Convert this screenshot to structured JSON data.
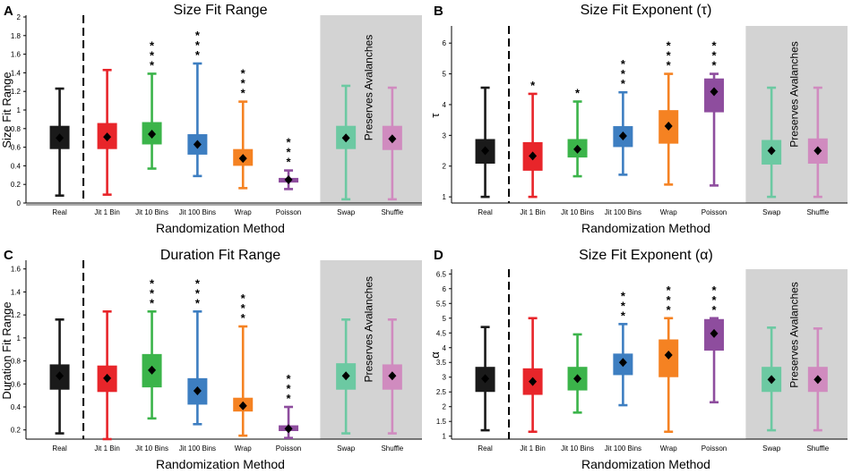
{
  "colors": {
    "axis": "#000000",
    "shade": "#d3d3d3",
    "methods": [
      "#1a1a1a",
      "#e8252a",
      "#3bb44a",
      "#3d7ec1",
      "#f58222",
      "#8e4d9e",
      "#6cc9a2",
      "#d08bbf"
    ]
  },
  "chart_data": [
    {
      "panel_letter": "A",
      "type": "box",
      "title": "Size Fit Range",
      "xlabel": "Randomization Method",
      "ylabel": "Size Fit Range",
      "ylim": [
        0,
        2
      ],
      "yticks": [
        "0",
        "0.2",
        "0.4",
        "0.6",
        "0.8",
        "1",
        "1.2",
        "1.4",
        "1.6",
        "1.8",
        "2"
      ],
      "categories": [
        "Real",
        "Jit 1 Bin",
        "Jit 10 Bins",
        "Jit 100 Bins",
        "Wrap",
        "Poisson",
        "Swap",
        "Shuffle"
      ],
      "shaded_label": "Preserves Avalanches",
      "reference_line": 0,
      "boxes": [
        {
          "min": 0.08,
          "q1": 0.58,
          "median": 0.7,
          "q3": 0.83,
          "max": 1.23,
          "stars": ""
        },
        {
          "min": 0.09,
          "q1": 0.58,
          "median": 0.71,
          "q3": 0.86,
          "max": 1.43,
          "stars": ""
        },
        {
          "min": 0.37,
          "q1": 0.63,
          "median": 0.74,
          "q3": 0.87,
          "max": 1.39,
          "stars": "***"
        },
        {
          "min": 0.29,
          "q1": 0.52,
          "median": 0.63,
          "q3": 0.74,
          "max": 1.5,
          "stars": "***"
        },
        {
          "min": 0.16,
          "q1": 0.4,
          "median": 0.48,
          "q3": 0.58,
          "max": 1.09,
          "stars": "***"
        },
        {
          "min": 0.15,
          "q1": 0.22,
          "median": 0.25,
          "q3": 0.27,
          "max": 0.35,
          "stars": "***"
        },
        {
          "min": 0.04,
          "q1": 0.58,
          "median": 0.7,
          "q3": 0.83,
          "max": 1.26,
          "stars": ""
        },
        {
          "min": 0.04,
          "q1": 0.57,
          "median": 0.69,
          "q3": 0.83,
          "max": 1.24,
          "stars": ""
        }
      ]
    },
    {
      "panel_letter": "B",
      "type": "box",
      "title": "Size Fit Exponent (τ)",
      "xlabel": "Randomization Method",
      "ylabel": "τ",
      "ylim": [
        0.8,
        6.5
      ],
      "yticks": [
        "1",
        "2",
        "3",
        "4",
        "5",
        "6"
      ],
      "categories": [
        "Real",
        "Jit 1 Bin",
        "Jit 10 Bins",
        "Jit 100 Bins",
        "Wrap",
        "Poisson",
        "Swap",
        "Shuffle"
      ],
      "shaded_label": "Preserves Avalanches",
      "reference_line": null,
      "boxes": [
        {
          "min": 1.0,
          "q1": 2.08,
          "median": 2.5,
          "q3": 2.88,
          "max": 4.55,
          "stars": ""
        },
        {
          "min": 1.0,
          "q1": 1.85,
          "median": 2.33,
          "q3": 2.78,
          "max": 4.35,
          "stars": "*"
        },
        {
          "min": 1.67,
          "q1": 2.28,
          "median": 2.55,
          "q3": 2.88,
          "max": 4.1,
          "stars": "*"
        },
        {
          "min": 1.72,
          "q1": 2.62,
          "median": 2.98,
          "q3": 3.3,
          "max": 4.4,
          "stars": "***"
        },
        {
          "min": 1.4,
          "q1": 2.73,
          "median": 3.3,
          "q3": 3.82,
          "max": 5.0,
          "stars": "***"
        },
        {
          "min": 1.37,
          "q1": 3.75,
          "median": 4.42,
          "q3": 4.85,
          "max": 5.0,
          "stars": "***"
        },
        {
          "min": 1.0,
          "q1": 2.05,
          "median": 2.5,
          "q3": 2.85,
          "max": 4.55,
          "stars": ""
        },
        {
          "min": 1.0,
          "q1": 2.08,
          "median": 2.5,
          "q3": 2.9,
          "max": 4.55,
          "stars": ""
        }
      ]
    },
    {
      "panel_letter": "C",
      "type": "box",
      "title": "Duration Fit Range",
      "xlabel": "Randomization Method",
      "ylabel": "Duration Fit Range",
      "ylim": [
        0.12,
        1.66
      ],
      "yticks": [
        "0.2",
        "0.4",
        "0.6",
        "0.8",
        "1",
        "1.2",
        "1.4",
        "1.6"
      ],
      "categories": [
        "Real",
        "Jit 1 Bin",
        "Jit 10 Bins",
        "Jit 100 Bins",
        "Wrap",
        "Poisson",
        "Swap",
        "Shuffle"
      ],
      "shaded_label": "Preserves Avalanches",
      "reference_line": null,
      "boxes": [
        {
          "min": 0.17,
          "q1": 0.55,
          "median": 0.67,
          "q3": 0.77,
          "max": 1.16,
          "stars": ""
        },
        {
          "min": 0.12,
          "q1": 0.53,
          "median": 0.65,
          "q3": 0.76,
          "max": 1.23,
          "stars": ""
        },
        {
          "min": 0.3,
          "q1": 0.57,
          "median": 0.72,
          "q3": 0.86,
          "max": 1.23,
          "stars": "***"
        },
        {
          "min": 0.25,
          "q1": 0.42,
          "median": 0.54,
          "q3": 0.65,
          "max": 1.23,
          "stars": "***"
        },
        {
          "min": 0.15,
          "q1": 0.36,
          "median": 0.41,
          "q3": 0.48,
          "max": 1.1,
          "stars": "***"
        },
        {
          "min": 0.13,
          "q1": 0.19,
          "median": 0.21,
          "q3": 0.24,
          "max": 0.4,
          "stars": "***"
        },
        {
          "min": 0.17,
          "q1": 0.55,
          "median": 0.67,
          "q3": 0.78,
          "max": 1.16,
          "stars": ""
        },
        {
          "min": 0.17,
          "q1": 0.55,
          "median": 0.67,
          "q3": 0.77,
          "max": 1.16,
          "stars": ""
        }
      ]
    },
    {
      "panel_letter": "D",
      "type": "box",
      "title": "Size Fit Exponent (α)",
      "xlabel": "Randomization Method",
      "ylabel": "α",
      "ylim": [
        0.9,
        6.6
      ],
      "yticks": [
        "1",
        "1.5",
        "2",
        "2.5",
        "3",
        "3.5",
        "4",
        "4.5",
        "5",
        "5.5",
        "6",
        "6.5"
      ],
      "categories": [
        "Real",
        "Jit 1 Bin",
        "Jit 10 Bins",
        "Jit 100 Bins",
        "Wrap",
        "Poisson",
        "Swap",
        "Shuffle"
      ],
      "shaded_label": "Preserves Avalanches",
      "reference_line": null,
      "boxes": [
        {
          "min": 1.2,
          "q1": 2.5,
          "median": 2.95,
          "q3": 3.35,
          "max": 4.7,
          "stars": ""
        },
        {
          "min": 1.15,
          "q1": 2.4,
          "median": 2.85,
          "q3": 3.3,
          "max": 5.0,
          "stars": ""
        },
        {
          "min": 1.8,
          "q1": 2.55,
          "median": 2.95,
          "q3": 3.35,
          "max": 4.45,
          "stars": ""
        },
        {
          "min": 2.05,
          "q1": 3.07,
          "median": 3.5,
          "q3": 3.8,
          "max": 4.8,
          "stars": "***"
        },
        {
          "min": 1.15,
          "q1": 3.0,
          "median": 3.75,
          "q3": 4.28,
          "max": 5.0,
          "stars": "***"
        },
        {
          "min": 2.15,
          "q1": 3.9,
          "median": 4.48,
          "q3": 4.97,
          "max": 5.0,
          "stars": "***"
        },
        {
          "min": 1.2,
          "q1": 2.5,
          "median": 2.92,
          "q3": 3.35,
          "max": 4.68,
          "stars": ""
        },
        {
          "min": 1.2,
          "q1": 2.5,
          "median": 2.92,
          "q3": 3.35,
          "max": 4.65,
          "stars": ""
        }
      ]
    }
  ]
}
